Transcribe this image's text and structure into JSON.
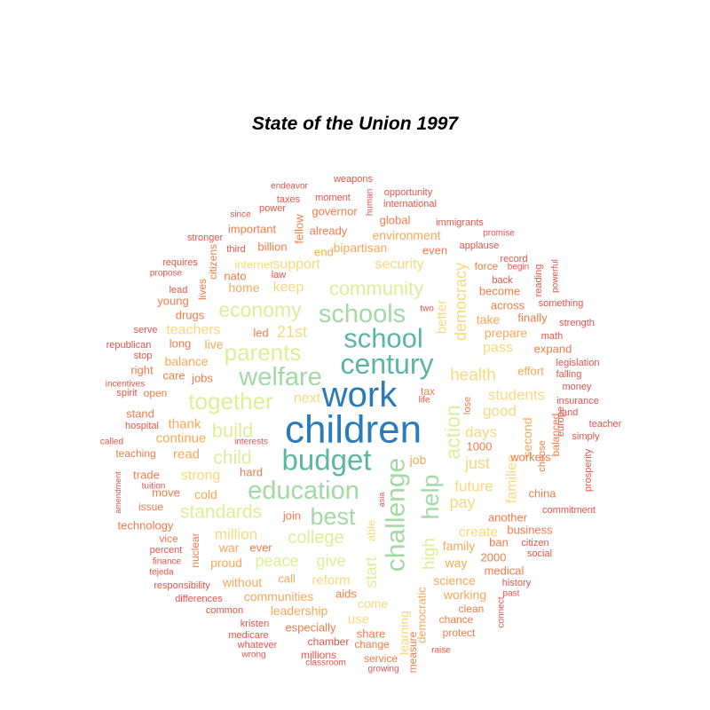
{
  "chart_data": {
    "type": "wordcloud",
    "title": "State of the Union 1997",
    "palette": {
      "deep_blue": "#2b7bba",
      "teal": "#5bb7a0",
      "mint": "#a3d9a4",
      "light_green": "#dcee98",
      "pale_yellow": "#f8d87e",
      "peach": "#f7a859",
      "orange": "#f07c4a",
      "red_orange": "#e2554b"
    },
    "words": [
      {
        "text": "children",
        "color": "deep_blue"
      },
      {
        "text": "work",
        "color": "deep_blue"
      },
      {
        "text": "budget",
        "color": "teal"
      },
      {
        "text": "century",
        "color": "teal"
      },
      {
        "text": "school",
        "color": "teal"
      },
      {
        "text": "education",
        "color": "mint"
      },
      {
        "text": "welfare",
        "color": "mint"
      },
      {
        "text": "schools",
        "color": "mint"
      },
      {
        "text": "challenge",
        "color": "mint"
      },
      {
        "text": "help",
        "color": "mint"
      },
      {
        "text": "best",
        "color": "mint"
      },
      {
        "text": "parents",
        "color": "light_green"
      },
      {
        "text": "together",
        "color": "light_green"
      },
      {
        "text": "economy",
        "color": "light_green"
      },
      {
        "text": "community",
        "color": "light_green"
      },
      {
        "text": "standards",
        "color": "light_green"
      },
      {
        "text": "child",
        "color": "light_green"
      },
      {
        "text": "build",
        "color": "light_green"
      },
      {
        "text": "action",
        "color": "light_green"
      },
      {
        "text": "college",
        "color": "light_green"
      },
      {
        "text": "give",
        "color": "light_green"
      },
      {
        "text": "peace",
        "color": "light_green"
      },
      {
        "text": "high",
        "color": "light_green"
      },
      {
        "text": "start",
        "color": "light_green"
      },
      {
        "text": "health",
        "color": "pale_yellow"
      },
      {
        "text": "21st",
        "color": "pale_yellow"
      },
      {
        "text": "keep",
        "color": "pale_yellow"
      },
      {
        "text": "support",
        "color": "pale_yellow"
      },
      {
        "text": "security",
        "color": "pale_yellow"
      },
      {
        "text": "next",
        "color": "pale_yellow"
      },
      {
        "text": "students",
        "color": "pale_yellow"
      },
      {
        "text": "good",
        "color": "pale_yellow"
      },
      {
        "text": "days",
        "color": "pale_yellow"
      },
      {
        "text": "just",
        "color": "pale_yellow"
      },
      {
        "text": "future",
        "color": "pale_yellow"
      },
      {
        "text": "pay",
        "color": "pale_yellow"
      },
      {
        "text": "create",
        "color": "pale_yellow"
      },
      {
        "text": "million",
        "color": "pale_yellow"
      },
      {
        "text": "strong",
        "color": "pale_yellow"
      },
      {
        "text": "democracy",
        "color": "pale_yellow"
      },
      {
        "text": "better",
        "color": "pale_yellow"
      },
      {
        "text": "pass",
        "color": "pale_yellow"
      },
      {
        "text": "families",
        "color": "pale_yellow"
      },
      {
        "text": "able",
        "color": "pale_yellow"
      },
      {
        "text": "reform",
        "color": "pale_yellow"
      },
      {
        "text": "learning",
        "color": "pale_yellow"
      },
      {
        "text": "use",
        "color": "pale_yellow"
      },
      {
        "text": "come",
        "color": "pale_yellow"
      },
      {
        "text": "internet",
        "color": "pale_yellow"
      },
      {
        "text": "teachers",
        "color": "pale_yellow"
      },
      {
        "text": "thank",
        "color": "peach"
      },
      {
        "text": "continue",
        "color": "peach"
      },
      {
        "text": "read",
        "color": "peach"
      },
      {
        "text": "cold",
        "color": "peach"
      },
      {
        "text": "home",
        "color": "peach"
      },
      {
        "text": "live",
        "color": "peach"
      },
      {
        "text": "balance",
        "color": "peach"
      },
      {
        "text": "environment",
        "color": "peach"
      },
      {
        "text": "bipartisan",
        "color": "peach"
      },
      {
        "text": "end",
        "color": "peach"
      },
      {
        "text": "second",
        "color": "peach"
      },
      {
        "text": "prepare",
        "color": "peach"
      },
      {
        "text": "take",
        "color": "peach"
      },
      {
        "text": "family",
        "color": "peach"
      },
      {
        "text": "way",
        "color": "peach"
      },
      {
        "text": "proud",
        "color": "peach"
      },
      {
        "text": "war",
        "color": "peach"
      },
      {
        "text": "communities",
        "color": "peach"
      },
      {
        "text": "leadership",
        "color": "peach"
      },
      {
        "text": "without",
        "color": "peach"
      },
      {
        "text": "call",
        "color": "peach"
      },
      {
        "text": "working",
        "color": "peach"
      },
      {
        "text": "science",
        "color": "peach"
      },
      {
        "text": "democratic",
        "color": "peach"
      },
      {
        "text": "job",
        "color": "peach"
      },
      {
        "text": "effort",
        "color": "peach"
      },
      {
        "text": "share",
        "color": "orange"
      },
      {
        "text": "especially",
        "color": "orange"
      },
      {
        "text": "aids",
        "color": "orange"
      },
      {
        "text": "workers",
        "color": "orange"
      },
      {
        "text": "choose",
        "color": "orange"
      },
      {
        "text": "1000",
        "color": "orange"
      },
      {
        "text": "lose",
        "color": "orange"
      },
      {
        "text": "tax",
        "color": "orange"
      },
      {
        "text": "2000",
        "color": "orange"
      },
      {
        "text": "jobs",
        "color": "orange"
      },
      {
        "text": "open",
        "color": "orange"
      },
      {
        "text": "global",
        "color": "orange"
      },
      {
        "text": "governor",
        "color": "orange"
      },
      {
        "text": "important",
        "color": "orange"
      },
      {
        "text": "billion",
        "color": "orange"
      },
      {
        "text": "fellow",
        "color": "orange"
      },
      {
        "text": "already",
        "color": "orange"
      },
      {
        "text": "even",
        "color": "orange"
      },
      {
        "text": "nato",
        "color": "orange"
      },
      {
        "text": "led",
        "color": "orange"
      },
      {
        "text": "drugs",
        "color": "orange"
      },
      {
        "text": "young",
        "color": "orange"
      },
      {
        "text": "lives",
        "color": "orange"
      },
      {
        "text": "citizens",
        "color": "orange"
      },
      {
        "text": "long",
        "color": "orange"
      },
      {
        "text": "right",
        "color": "orange"
      },
      {
        "text": "care",
        "color": "orange"
      },
      {
        "text": "stand",
        "color": "orange"
      },
      {
        "text": "teaching",
        "color": "orange"
      },
      {
        "text": "trade",
        "color": "orange"
      },
      {
        "text": "move",
        "color": "orange"
      },
      {
        "text": "hard",
        "color": "orange"
      },
      {
        "text": "join",
        "color": "orange"
      },
      {
        "text": "ever",
        "color": "orange"
      },
      {
        "text": "nuclear",
        "color": "orange"
      },
      {
        "text": "technology",
        "color": "orange"
      },
      {
        "text": "vice",
        "color": "orange"
      },
      {
        "text": "issue",
        "color": "orange"
      },
      {
        "text": "become",
        "color": "orange"
      },
      {
        "text": "across",
        "color": "orange"
      },
      {
        "text": "finally",
        "color": "orange"
      },
      {
        "text": "force",
        "color": "orange"
      },
      {
        "text": "expand",
        "color": "orange"
      },
      {
        "text": "balanced",
        "color": "orange"
      },
      {
        "text": "china",
        "color": "orange"
      },
      {
        "text": "another",
        "color": "orange"
      },
      {
        "text": "business",
        "color": "orange"
      },
      {
        "text": "ban",
        "color": "orange"
      },
      {
        "text": "medical",
        "color": "orange"
      },
      {
        "text": "clean",
        "color": "orange"
      },
      {
        "text": "chance",
        "color": "orange"
      },
      {
        "text": "protect",
        "color": "orange"
      },
      {
        "text": "measure",
        "color": "orange"
      },
      {
        "text": "change",
        "color": "orange"
      },
      {
        "text": "service",
        "color": "orange"
      },
      {
        "text": "chamber",
        "color": "red_orange"
      },
      {
        "text": "millions",
        "color": "red_orange"
      },
      {
        "text": "kristen",
        "color": "red_orange"
      },
      {
        "text": "medicare",
        "color": "red_orange"
      },
      {
        "text": "whatever",
        "color": "red_orange"
      },
      {
        "text": "common",
        "color": "red_orange"
      },
      {
        "text": "differences",
        "color": "red_orange"
      },
      {
        "text": "responsibility",
        "color": "red_orange"
      },
      {
        "text": "finance",
        "color": "red_orange"
      },
      {
        "text": "percent",
        "color": "red_orange"
      },
      {
        "text": "tejeda",
        "color": "red_orange"
      },
      {
        "text": "tuition",
        "color": "red_orange"
      },
      {
        "text": "amendment",
        "color": "red_orange"
      },
      {
        "text": "hospital",
        "color": "red_orange"
      },
      {
        "text": "called",
        "color": "red_orange"
      },
      {
        "text": "spirit",
        "color": "red_orange"
      },
      {
        "text": "incentives",
        "color": "red_orange"
      },
      {
        "text": "stop",
        "color": "red_orange"
      },
      {
        "text": "republican",
        "color": "red_orange"
      },
      {
        "text": "serve",
        "color": "red_orange"
      },
      {
        "text": "lead",
        "color": "red_orange"
      },
      {
        "text": "propose",
        "color": "red_orange"
      },
      {
        "text": "requires",
        "color": "red_orange"
      },
      {
        "text": "stronger",
        "color": "red_orange"
      },
      {
        "text": "since",
        "color": "red_orange"
      },
      {
        "text": "third",
        "color": "red_orange"
      },
      {
        "text": "power",
        "color": "red_orange"
      },
      {
        "text": "taxes",
        "color": "red_orange"
      },
      {
        "text": "endeavor",
        "color": "red_orange"
      },
      {
        "text": "law",
        "color": "red_orange"
      },
      {
        "text": "weapons",
        "color": "red_orange"
      },
      {
        "text": "moment",
        "color": "red_orange"
      },
      {
        "text": "human",
        "color": "red_orange"
      },
      {
        "text": "opportunity",
        "color": "red_orange"
      },
      {
        "text": "international",
        "color": "red_orange"
      },
      {
        "text": "immigrants",
        "color": "red_orange"
      },
      {
        "text": "promise",
        "color": "red_orange"
      },
      {
        "text": "applause",
        "color": "red_orange"
      },
      {
        "text": "record",
        "color": "red_orange"
      },
      {
        "text": "begin",
        "color": "red_orange"
      },
      {
        "text": "back",
        "color": "red_orange"
      },
      {
        "text": "reading",
        "color": "red_orange"
      },
      {
        "text": "powerful",
        "color": "red_orange"
      },
      {
        "text": "two",
        "color": "red_orange"
      },
      {
        "text": "something",
        "color": "red_orange"
      },
      {
        "text": "strength",
        "color": "red_orange"
      },
      {
        "text": "math",
        "color": "red_orange"
      },
      {
        "text": "legislation",
        "color": "red_orange"
      },
      {
        "text": "falling",
        "color": "red_orange"
      },
      {
        "text": "money",
        "color": "red_orange"
      },
      {
        "text": "land",
        "color": "red_orange"
      },
      {
        "text": "insurance",
        "color": "red_orange"
      },
      {
        "text": "europe",
        "color": "red_orange"
      },
      {
        "text": "teacher",
        "color": "red_orange"
      },
      {
        "text": "simply",
        "color": "red_orange"
      },
      {
        "text": "prosperity",
        "color": "red_orange"
      },
      {
        "text": "commitment",
        "color": "red_orange"
      },
      {
        "text": "citizen",
        "color": "red_orange"
      },
      {
        "text": "social",
        "color": "red_orange"
      },
      {
        "text": "history",
        "color": "red_orange"
      },
      {
        "text": "past",
        "color": "red_orange"
      },
      {
        "text": "connect",
        "color": "red_orange"
      },
      {
        "text": "raise",
        "color": "red_orange"
      },
      {
        "text": "growing",
        "color": "red_orange"
      },
      {
        "text": "classroom",
        "color": "red_orange"
      },
      {
        "text": "wrong",
        "color": "red_orange"
      },
      {
        "text": "interests",
        "color": "red_orange"
      },
      {
        "text": "asia",
        "color": "red_orange"
      },
      {
        "text": "life",
        "color": "red_orange"
      }
    ]
  }
}
